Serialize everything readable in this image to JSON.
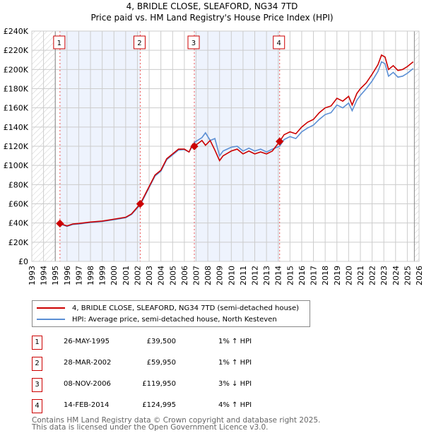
{
  "chart_data": {
    "type": "line",
    "title": "4, BRIDLE CLOSE, SLEAFORD, NG34 7TD",
    "subtitle": "Price paid vs. HM Land Registry's House Price Index (HPI)",
    "xlim": [
      1993,
      2026
    ],
    "ylim": [
      0,
      240000
    ],
    "x_ticks": [
      "1993",
      "1994",
      "1995",
      "1996",
      "1997",
      "1998",
      "1999",
      "2000",
      "2001",
      "2002",
      "2003",
      "2004",
      "2005",
      "2006",
      "2007",
      "2008",
      "2009",
      "2010",
      "2011",
      "2012",
      "2013",
      "2014",
      "2015",
      "2016",
      "2017",
      "2018",
      "2019",
      "2020",
      "2021",
      "2022",
      "2023",
      "2024",
      "2025",
      "2026"
    ],
    "y_ticks": [
      {
        "v": 0,
        "label": "£0"
      },
      {
        "v": 20000,
        "label": "£20K"
      },
      {
        "v": 40000,
        "label": "£40K"
      },
      {
        "v": 60000,
        "label": "£60K"
      },
      {
        "v": 80000,
        "label": "£80K"
      },
      {
        "v": 100000,
        "label": "£100K"
      },
      {
        "v": 120000,
        "label": "£120K"
      },
      {
        "v": 140000,
        "label": "£140K"
      },
      {
        "v": 160000,
        "label": "£160K"
      },
      {
        "v": 180000,
        "label": "£180K"
      },
      {
        "v": 200000,
        "label": "£200K"
      },
      {
        "v": 220000,
        "label": "£220K"
      },
      {
        "v": 240000,
        "label": "£240K"
      }
    ],
    "hatch_before": 1995,
    "hatch_after": 2025.6,
    "series": [
      {
        "name": "4, BRIDLE CLOSE, SLEAFORD, NG34 7TD (semi-detached house)",
        "color": "#cc0000",
        "x": [
          1995.4,
          1996,
          1996.5,
          1997,
          1998,
          1999,
          2000,
          2001,
          2001.5,
          2002.24,
          2002.5,
          2003,
          2003.5,
          2004,
          2004.5,
          2005,
          2005.5,
          2006,
          2006.4,
          2006.7,
          2006.85,
          2007.5,
          2007.8,
          2008.2,
          2008.6,
          2009,
          2009.3,
          2010,
          2010.5,
          2011,
          2011.5,
          2012,
          2012.5,
          2013,
          2013.5,
          2014.12,
          2014.5,
          2015,
          2015.5,
          2016,
          2016.5,
          2017,
          2017.5,
          2018,
          2018.5,
          2019,
          2019.5,
          2020,
          2020.3,
          2020.7,
          2021,
          2021.5,
          2022,
          2022.5,
          2022.8,
          2023.1,
          2023.4,
          2023.8,
          2024.2,
          2024.6,
          2025,
          2025.5
        ],
        "y": [
          39500,
          37000,
          39000,
          39500,
          41000,
          42000,
          44000,
          46000,
          49500,
          59950,
          66000,
          78000,
          90000,
          95000,
          107000,
          112000,
          117000,
          117000,
          114000,
          122000,
          119950,
          126000,
          121000,
          126000,
          116000,
          105000,
          110000,
          115000,
          117000,
          112000,
          115000,
          112000,
          114000,
          112000,
          115000,
          124995,
          132000,
          135000,
          133000,
          140000,
          145000,
          148000,
          155000,
          160000,
          162000,
          170000,
          167000,
          172000,
          163000,
          175000,
          180000,
          186000,
          195000,
          205000,
          215000,
          213000,
          200000,
          204000,
          199000,
          200000,
          203000,
          208000
        ]
      },
      {
        "name": "HPI: Average price, semi-detached house, North Kesteven",
        "color": "#5b8fd4",
        "x": [
          1995.4,
          1996,
          1996.5,
          1997,
          1998,
          1999,
          2000,
          2001,
          2001.5,
          2002.24,
          2002.5,
          2003,
          2003.5,
          2004,
          2004.5,
          2005,
          2005.5,
          2006,
          2006.4,
          2006.85,
          2007.5,
          2007.8,
          2008.2,
          2008.6,
          2009,
          2009.3,
          2010,
          2010.5,
          2011,
          2011.5,
          2012,
          2012.5,
          2013,
          2013.5,
          2014.12,
          2014.5,
          2015,
          2015.5,
          2016,
          2016.5,
          2017,
          2017.5,
          2018,
          2018.5,
          2019,
          2019.5,
          2020,
          2020.3,
          2020.7,
          2021,
          2021.5,
          2022,
          2022.5,
          2022.8,
          2023.1,
          2023.4,
          2023.8,
          2024.2,
          2024.6,
          2025,
          2025.5
        ],
        "y": [
          39000,
          36500,
          38500,
          39000,
          40500,
          41500,
          43500,
          45500,
          49000,
          59000,
          65000,
          77000,
          89000,
          94000,
          106000,
          111000,
          116000,
          116500,
          114000,
          124000,
          129000,
          134000,
          126000,
          128000,
          110000,
          115000,
          119000,
          120000,
          115000,
          118000,
          115000,
          117000,
          114000,
          117000,
          120000,
          127000,
          130000,
          128000,
          135000,
          139000,
          142000,
          148000,
          153000,
          155000,
          163000,
          160000,
          165000,
          157000,
          168000,
          173000,
          180000,
          188000,
          198000,
          208000,
          206000,
          193000,
          197000,
          192000,
          193000,
          196000,
          201000
        ]
      }
    ],
    "sales": [
      {
        "n": "1",
        "x": 2002.24,
        "x0": 1995.4,
        "y": 39500
      },
      {
        "n": "2",
        "x": 2002.24,
        "y": 59950
      },
      {
        "n": "3",
        "x": 2006.85,
        "y": 119950
      },
      {
        "n": "4",
        "x": 2014.12,
        "y": 124995
      }
    ],
    "sale_x": [
      1995.4,
      2002.24,
      2006.85,
      2014.12
    ]
  },
  "legend": {
    "property": "4, BRIDLE CLOSE, SLEAFORD, NG34 7TD (semi-detached house)",
    "hpi": "HPI: Average price, semi-detached house, North Kesteven"
  },
  "transactions": [
    {
      "n": "1",
      "date": "26-MAY-1995",
      "price": "£39,500",
      "delta": "1% ↑ HPI"
    },
    {
      "n": "2",
      "date": "28-MAR-2002",
      "price": "£59,950",
      "delta": "1% ↑ HPI"
    },
    {
      "n": "3",
      "date": "08-NOV-2006",
      "price": "£119,950",
      "delta": "3% ↓ HPI"
    },
    {
      "n": "4",
      "date": "14-FEB-2014",
      "price": "£124,995",
      "delta": "4% ↑ HPI"
    }
  ],
  "footer": {
    "line1": "Contains HM Land Registry data © Crown copyright and database right 2025.",
    "line2": "This data is licensed under the Open Government Licence v3.0."
  }
}
